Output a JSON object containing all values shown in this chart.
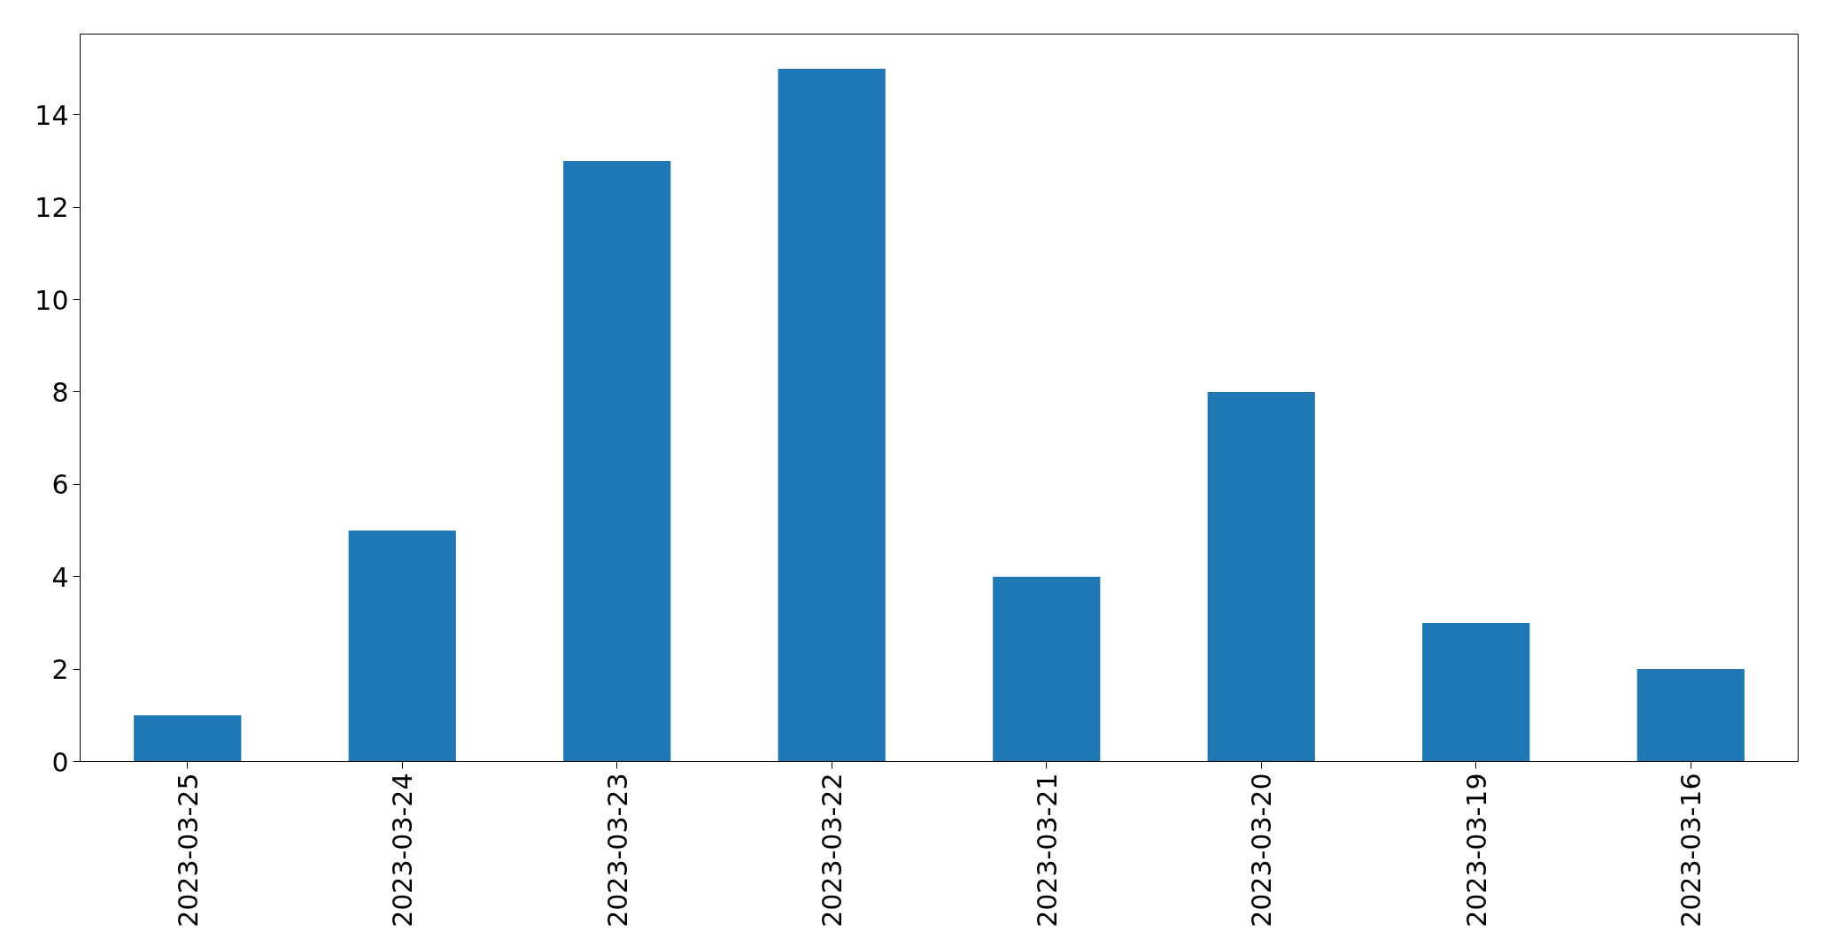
{
  "chart_data": {
    "type": "bar",
    "categories": [
      "2023-03-25",
      "2023-03-24",
      "2023-03-23",
      "2023-03-22",
      "2023-03-21",
      "2023-03-20",
      "2023-03-19",
      "2023-03-16"
    ],
    "values": [
      1,
      5,
      13,
      15,
      4,
      8,
      3,
      2
    ],
    "color": "#1f77b4",
    "ylim": [
      0,
      15.75
    ],
    "yticks": [
      0,
      2,
      4,
      6,
      8,
      10,
      12,
      14
    ]
  }
}
